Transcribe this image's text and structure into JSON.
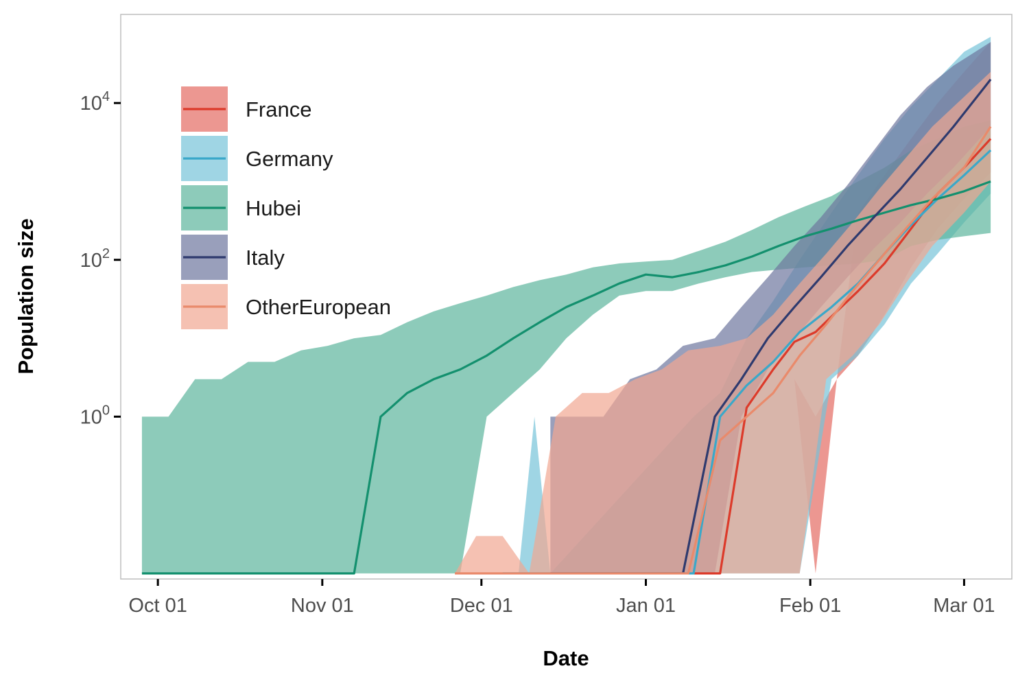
{
  "chart_data": {
    "type": "area",
    "xlabel": "Date",
    "ylabel": "Population size",
    "y_scale": "log10",
    "ylim": [
      0.0085,
      135000
    ],
    "xlim": [
      "2019-09-24",
      "2020-03-10"
    ],
    "grid": false,
    "legend_position": "top-left inside",
    "x_ticks": [
      {
        "date": "2019-10-01",
        "label": "Oct 01"
      },
      {
        "date": "2019-11-01",
        "label": "Nov 01"
      },
      {
        "date": "2019-12-01",
        "label": "Dec 01"
      },
      {
        "date": "2020-01-01",
        "label": "Jan 01"
      },
      {
        "date": "2020-02-01",
        "label": "Feb 01"
      },
      {
        "date": "2020-03-01",
        "label": "Mar 01"
      }
    ],
    "y_ticks": [
      {
        "value": 1,
        "base": "10",
        "exp": "0"
      },
      {
        "value": 100,
        "base": "10",
        "exp": "2"
      },
      {
        "value": 10000,
        "base": "10",
        "exp": "4"
      }
    ],
    "series": [
      {
        "name": "France",
        "line_color": "#dc3a2a",
        "band_color": "#e46b62",
        "x": [
          "2020-01-10",
          "2020-01-15",
          "2020-01-20",
          "2020-01-25",
          "2020-01-29",
          "2020-02-02",
          "2020-02-06",
          "2020-02-10",
          "2020-02-15",
          "2020-02-20",
          "2020-02-25",
          "2020-03-01",
          "2020-03-06"
        ],
        "y": [
          0.01,
          0.01,
          1.3,
          4,
          9,
          12,
          22,
          40,
          90,
          250,
          700,
          1500,
          3500
        ],
        "lower": [
          0.01,
          0.01,
          0.01,
          0.01,
          3,
          0.01,
          3,
          6,
          20,
          80,
          250,
          600,
          1300
        ],
        "upper": [
          0.01,
          0.01,
          0.01,
          0.01,
          3,
          1,
          3,
          400,
          1200,
          3500,
          10000,
          25000,
          60000
        ]
      },
      {
        "name": "Germany",
        "line_color": "#3aa8c9",
        "band_color": "#76c3d9",
        "x": [
          "2019-12-05",
          "2019-12-08",
          "2019-12-11",
          "2019-12-14",
          "2020-01-10",
          "2020-01-15",
          "2020-01-20",
          "2020-01-25",
          "2020-01-30",
          "2020-02-05",
          "2020-02-10",
          "2020-02-15",
          "2020-02-20",
          "2020-02-25",
          "2020-03-01",
          "2020-03-06"
        ],
        "y": [
          0.01,
          0.01,
          0.01,
          0.01,
          0.01,
          1,
          2.5,
          5,
          12,
          25,
          50,
          120,
          280,
          600,
          1200,
          2500
        ],
        "lower": [
          0.01,
          0.01,
          0.01,
          0.01,
          0.01,
          0.01,
          0.01,
          0.01,
          0.01,
          3,
          6,
          15,
          50,
          120,
          300,
          700
        ],
        "upper": [
          0.01,
          0.01,
          1,
          0.01,
          1,
          2,
          10,
          30,
          100,
          400,
          1200,
          3500,
          9000,
          20000,
          45000,
          70000
        ]
      },
      {
        "name": "Hubei",
        "line_color": "#13906e",
        "band_color": "#5db59d",
        "x": [
          "2019-09-28",
          "2019-10-03",
          "2019-10-08",
          "2019-10-13",
          "2019-10-18",
          "2019-10-23",
          "2019-10-28",
          "2019-11-02",
          "2019-11-07",
          "2019-11-12",
          "2019-11-17",
          "2019-11-22",
          "2019-11-27",
          "2019-12-02",
          "2019-12-07",
          "2019-12-12",
          "2019-12-17",
          "2019-12-22",
          "2019-12-27",
          "2020-01-01",
          "2020-01-06",
          "2020-01-11",
          "2020-01-16",
          "2020-01-21",
          "2020-01-26",
          "2020-01-31",
          "2020-02-05",
          "2020-02-10",
          "2020-02-15",
          "2020-02-20",
          "2020-02-25",
          "2020-03-01",
          "2020-03-06"
        ],
        "y": [
          0.01,
          0.01,
          0.01,
          0.01,
          0.01,
          0.01,
          0.01,
          0.01,
          0.01,
          1,
          2,
          3,
          4,
          6,
          10,
          16,
          25,
          35,
          50,
          65,
          60,
          70,
          85,
          110,
          150,
          200,
          250,
          320,
          400,
          500,
          600,
          750,
          1000
        ],
        "lower": [
          0.01,
          0.01,
          0.01,
          0.01,
          0.01,
          0.01,
          0.01,
          0.01,
          0.01,
          0.01,
          0.01,
          0.01,
          0.01,
          1,
          2,
          4,
          10,
          20,
          35,
          40,
          40,
          50,
          60,
          70,
          75,
          80,
          85,
          90,
          100,
          150,
          180,
          200,
          220
        ],
        "upper": [
          1,
          1,
          3,
          3,
          5,
          5,
          7,
          8,
          10,
          11,
          16,
          22,
          28,
          35,
          45,
          55,
          65,
          80,
          90,
          95,
          100,
          130,
          170,
          240,
          350,
          480,
          650,
          1000,
          1500,
          2500,
          3500,
          5000,
          6000
        ]
      },
      {
        "name": "Italy",
        "line_color": "#2e3a6e",
        "band_color": "#6d769e",
        "x": [
          "2019-12-14",
          "2019-12-19",
          "2019-12-24",
          "2019-12-29",
          "2020-01-03",
          "2020-01-08",
          "2020-01-14",
          "2020-01-19",
          "2020-01-24",
          "2020-01-29",
          "2020-02-03",
          "2020-02-08",
          "2020-02-13",
          "2020-02-18",
          "2020-02-23",
          "2020-02-28",
          "2020-03-06"
        ],
        "y": [
          0.01,
          0.01,
          0.01,
          0.01,
          0.01,
          0.01,
          1,
          3,
          10,
          25,
          60,
          150,
          350,
          800,
          2000,
          5000,
          20000
        ],
        "lower": [
          0.01,
          0.01,
          0.01,
          0.01,
          0.01,
          0.01,
          0.01,
          1,
          4,
          10,
          25,
          60,
          140,
          300,
          700,
          1500,
          5000
        ],
        "upper": [
          1,
          1,
          1,
          3,
          4,
          8,
          10,
          25,
          60,
          150,
          350,
          900,
          2500,
          7000,
          16000,
          30000,
          60000
        ]
      },
      {
        "name": "OtherEuropean",
        "line_color": "#e98a6b",
        "band_color": "#f1a792",
        "x": [
          "2019-11-26",
          "2019-11-30",
          "2019-12-05",
          "2019-12-10",
          "2019-12-15",
          "2019-12-20",
          "2019-12-25",
          "2019-12-30",
          "2020-01-04",
          "2020-01-09",
          "2020-01-15",
          "2020-01-20",
          "2020-01-25",
          "2020-01-30",
          "2020-02-04",
          "2020-02-09",
          "2020-02-14",
          "2020-02-19",
          "2020-02-24",
          "2020-03-01",
          "2020-03-06"
        ],
        "y": [
          0.01,
          0.01,
          0.01,
          0.01,
          0.01,
          0.01,
          0.01,
          0.01,
          0.01,
          0.01,
          0.5,
          1,
          2,
          6,
          15,
          40,
          100,
          250,
          600,
          1500,
          5000
        ],
        "lower": [
          0.01,
          0.01,
          0.01,
          0.01,
          0.01,
          0.01,
          0.01,
          0.01,
          0.01,
          0.01,
          0.01,
          0.01,
          0.01,
          0.01,
          3,
          6,
          15,
          50,
          150,
          400,
          1000
        ],
        "upper": [
          0.01,
          0.03,
          0.03,
          0.01,
          1,
          2,
          2,
          3,
          4,
          7,
          8,
          10,
          20,
          50,
          120,
          300,
          800,
          2000,
          5000,
          12000,
          25000
        ]
      }
    ]
  }
}
